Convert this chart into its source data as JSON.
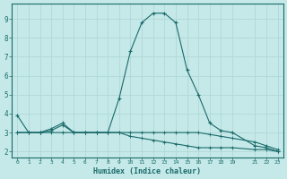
{
  "xlabel": "Humidex (Indice chaleur)",
  "ylabel": "",
  "bg_color": "#c5e8e8",
  "grid_color": "#b0d8d8",
  "line_color": "#1a6b6b",
  "xlim": [
    -0.5,
    23.5
  ],
  "ylim": [
    1.7,
    9.8
  ],
  "yticks": [
    2,
    3,
    4,
    5,
    6,
    7,
    8,
    9
  ],
  "xticks": [
    0,
    1,
    2,
    3,
    4,
    5,
    6,
    7,
    8,
    9,
    10,
    11,
    12,
    13,
    14,
    15,
    16,
    17,
    18,
    19,
    21,
    22,
    23
  ],
  "series1_x": [
    0,
    1,
    2,
    3,
    4,
    5,
    6,
    7,
    8,
    9,
    10,
    11,
    12,
    13,
    14,
    15,
    16,
    17,
    18,
    19,
    21,
    22,
    23
  ],
  "series1_y": [
    3.9,
    3.0,
    3.0,
    3.2,
    3.5,
    3.0,
    3.0,
    3.0,
    3.0,
    4.8,
    7.3,
    8.8,
    9.3,
    9.3,
    8.8,
    6.3,
    5.0,
    3.5,
    3.1,
    3.0,
    2.3,
    2.2,
    2.0
  ],
  "series2_x": [
    0,
    1,
    2,
    3,
    4,
    5,
    6,
    7,
    8,
    9,
    10,
    11,
    12,
    13,
    14,
    15,
    16,
    17,
    18,
    19,
    21,
    22,
    23
  ],
  "series2_y": [
    3.0,
    3.0,
    3.0,
    3.1,
    3.4,
    3.0,
    3.0,
    3.0,
    3.0,
    3.0,
    3.0,
    3.0,
    3.0,
    3.0,
    3.0,
    3.0,
    3.0,
    2.9,
    2.8,
    2.7,
    2.5,
    2.3,
    2.1
  ],
  "series3_x": [
    0,
    1,
    2,
    3,
    4,
    5,
    6,
    7,
    8,
    9,
    10,
    11,
    12,
    13,
    14,
    15,
    16,
    17,
    18,
    19,
    21,
    22,
    23
  ],
  "series3_y": [
    3.0,
    3.0,
    3.0,
    3.0,
    3.0,
    3.0,
    3.0,
    3.0,
    3.0,
    3.0,
    2.8,
    2.7,
    2.6,
    2.5,
    2.4,
    2.3,
    2.2,
    2.2,
    2.2,
    2.2,
    2.1,
    2.1,
    2.0
  ]
}
